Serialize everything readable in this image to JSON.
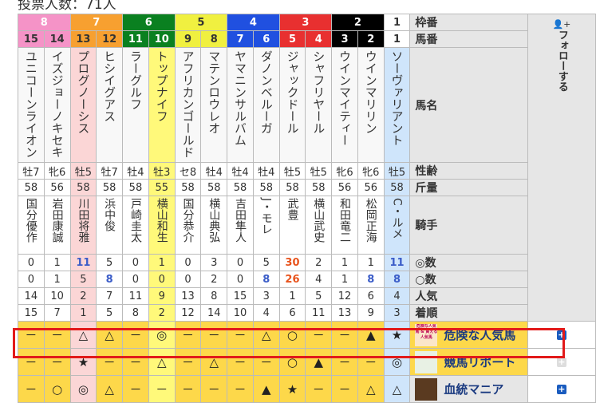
{
  "vote_count": "投票人数：71人",
  "labels": {
    "frame": "枠番",
    "number": "馬番",
    "name": "馬名",
    "sexage": "性齢",
    "weight": "斤量",
    "jockey": "騎手",
    "honmei": "◎数",
    "taikou": "○数",
    "popularity": "人気",
    "finish": "着順"
  },
  "follow": {
    "label": "フォローする",
    "icon": "user-plus-icon"
  },
  "frames": [
    {
      "n": "8",
      "color": "#f593c7",
      "span": 2
    },
    {
      "n": "7",
      "color": "#f7a030",
      "span": 2
    },
    {
      "n": "6",
      "color": "#0a8020",
      "span": 2
    },
    {
      "n": "5",
      "color": "#f0f040",
      "span": 2
    },
    {
      "n": "4",
      "color": "#2050e0",
      "span": 2
    },
    {
      "n": "3",
      "color": "#e83030",
      "span": 2
    },
    {
      "n": "2",
      "color": "#000000",
      "span": 2
    },
    {
      "n": "1",
      "color": "#ffffff",
      "span": 1
    }
  ],
  "horses": [
    {
      "no": "15",
      "name": "ユニコーンライオン",
      "sexage": "牡7",
      "weight": "58",
      "jockey": "国分優作",
      "honmei": "0",
      "taikou": "0",
      "pop": "14",
      "finish": "15"
    },
    {
      "no": "14",
      "name": "イズジョーノキセキ",
      "sexage": "牝6",
      "weight": "56",
      "jockey": "岩田康誠",
      "honmei": "1",
      "taikou": "1",
      "pop": "10",
      "finish": "7"
    },
    {
      "no": "13",
      "name": "プログノーシス",
      "sexage": "牡5",
      "weight": "58",
      "jockey": "川田将雅",
      "honmei": "11",
      "taikou": "5",
      "pop": "2",
      "finish": "1"
    },
    {
      "no": "12",
      "name": "ヒシイグアス",
      "sexage": "牡7",
      "weight": "58",
      "jockey": "浜中俊",
      "honmei": "5",
      "taikou": "8",
      "pop": "7",
      "finish": "5"
    },
    {
      "no": "11",
      "name": "ラーグルフ",
      "sexage": "牡4",
      "weight": "58",
      "jockey": "戸崎圭太",
      "honmei": "0",
      "taikou": "0",
      "pop": "11",
      "finish": "8"
    },
    {
      "no": "10",
      "name": "トップナイフ",
      "sexage": "牡3",
      "weight": "55",
      "jockey": "横山和生",
      "honmei": "1",
      "taikou": "0",
      "pop": "9",
      "finish": "2"
    },
    {
      "no": "9",
      "name": "アフリカンゴールド",
      "sexage": "セ8",
      "weight": "58",
      "jockey": "国分恭介",
      "honmei": "0",
      "taikou": "0",
      "pop": "13",
      "finish": "12"
    },
    {
      "no": "8",
      "name": "マテンロウレオ",
      "sexage": "牡4",
      "weight": "58",
      "jockey": "横山典弘",
      "honmei": "3",
      "taikou": "2",
      "pop": "8",
      "finish": "14"
    },
    {
      "no": "7",
      "name": "ヤマニンサルバム",
      "sexage": "牡4",
      "weight": "58",
      "jockey": "吉田隼人",
      "honmei": "0",
      "taikou": "0",
      "pop": "15",
      "finish": "10"
    },
    {
      "no": "6",
      "name": "ダノンベルーガ",
      "sexage": "牡4",
      "weight": "58",
      "jockey": "J・モレ",
      "honmei": "5",
      "taikou": "8",
      "pop": "3",
      "finish": "4"
    },
    {
      "no": "5",
      "name": "ジャックドール",
      "sexage": "牡5",
      "weight": "58",
      "jockey": "武豊",
      "honmei": "30",
      "taikou": "26",
      "pop": "1",
      "finish": "6"
    },
    {
      "no": "4",
      "name": "シャフリヤール",
      "sexage": "牡5",
      "weight": "58",
      "jockey": "横山武史",
      "honmei": "2",
      "taikou": "4",
      "pop": "5",
      "finish": "11"
    },
    {
      "no": "3",
      "name": "ウインマイティー",
      "sexage": "牝6",
      "weight": "56",
      "jockey": "和田竜二",
      "honmei": "1",
      "taikou": "1",
      "pop": "12",
      "finish": "13"
    },
    {
      "no": "2",
      "name": "ウインマリリン",
      "sexage": "牝6",
      "weight": "56",
      "jockey": "松岡正海",
      "honmei": "1",
      "taikou": "8",
      "pop": "6",
      "finish": "9"
    },
    {
      "no": "1",
      "name": "ソーヴァリアント",
      "sexage": "牡5",
      "weight": "58",
      "jockey": "C・ルメ",
      "honmei": "11",
      "taikou": "8",
      "pop": "4",
      "finish": "3"
    }
  ],
  "predictors": [
    {
      "name": "危険な人気馬",
      "avatar_text": "危険な人気馬 & 買える人気馬",
      "marks": [
        "－",
        "－",
        "△",
        "△",
        "－",
        "◎",
        "－",
        "－",
        "－",
        "△",
        "○",
        "－",
        "－",
        "▲",
        "★"
      ],
      "follow_enabled": true
    },
    {
      "name": "競馬リポート",
      "avatar_text": "",
      "marks": [
        "－",
        "－",
        "★",
        "－",
        "－",
        "△",
        "－",
        "△",
        "－",
        "－",
        "○",
        "▲",
        "－",
        "－",
        "◎"
      ],
      "follow_enabled": false,
      "highlighted": true
    },
    {
      "name": "血統マニア",
      "avatar_text": "",
      "marks": [
        "－",
        "○",
        "◎",
        "△",
        "－",
        "－",
        "－",
        "－",
        "－",
        "▲",
        "★",
        "－",
        "－",
        "△",
        "△"
      ],
      "follow_enabled": true
    }
  ]
}
